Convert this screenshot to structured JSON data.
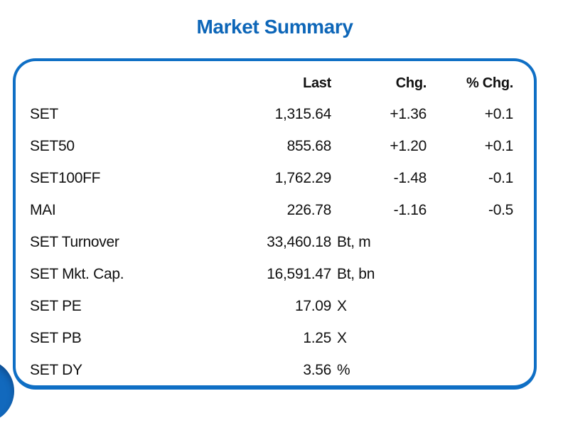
{
  "title": "Market Summary",
  "colors": {
    "title_blue": "#0d66b8",
    "card_border_blue": "#0f6fc5",
    "circle_blue": "#1269bd",
    "text": "#111111"
  },
  "table": {
    "headers": [
      "Last",
      "Chg.",
      "% Chg."
    ],
    "rows": [
      {
        "label": "SET",
        "last": "1,315.64",
        "unit": "",
        "chg": "+1.36",
        "pct_chg": "+0.1"
      },
      {
        "label": "SET50",
        "last": "855.68",
        "unit": "",
        "chg": "+1.20",
        "pct_chg": "+0.1"
      },
      {
        "label": "SET100FF",
        "last": "1,762.29",
        "unit": "",
        "chg": "-1.48",
        "pct_chg": "-0.1"
      },
      {
        "label": "MAI",
        "last": "226.78",
        "unit": "",
        "chg": "-1.16",
        "pct_chg": "-0.5"
      },
      {
        "label": "SET Turnover",
        "last": "33,460.18",
        "unit": "Bt, m",
        "chg": "",
        "pct_chg": ""
      },
      {
        "label": "SET Mkt. Cap.",
        "last": "16,591.47",
        "unit": "Bt, bn",
        "chg": "",
        "pct_chg": ""
      },
      {
        "label": "SET PE",
        "last": "17.09",
        "unit": "X",
        "chg": "",
        "pct_chg": ""
      },
      {
        "label": "SET PB",
        "last": "1.25",
        "unit": "X",
        "chg": "",
        "pct_chg": ""
      },
      {
        "label": "SET DY",
        "last": "3.56",
        "unit": "%",
        "chg": "",
        "pct_chg": ""
      }
    ]
  },
  "chart_data": {
    "type": "table",
    "title": "Market Summary",
    "columns": [
      "",
      "Last",
      "Chg.",
      "% Chg."
    ],
    "rows": [
      [
        "SET",
        1315.64,
        1.36,
        0.1
      ],
      [
        "SET50",
        855.68,
        1.2,
        0.1
      ],
      [
        "SET100FF",
        1762.29,
        -1.48,
        -0.1
      ],
      [
        "MAI",
        226.78,
        -1.16,
        -0.5
      ],
      [
        "SET Turnover",
        "33,460.18 Bt, m",
        null,
        null
      ],
      [
        "SET Mkt. Cap.",
        "16,591.47 Bt, bn",
        null,
        null
      ],
      [
        "SET PE",
        "17.09 X",
        null,
        null
      ],
      [
        "SET PB",
        "1.25 X",
        null,
        null
      ],
      [
        "SET DY",
        "3.56 %",
        null,
        null
      ]
    ]
  }
}
